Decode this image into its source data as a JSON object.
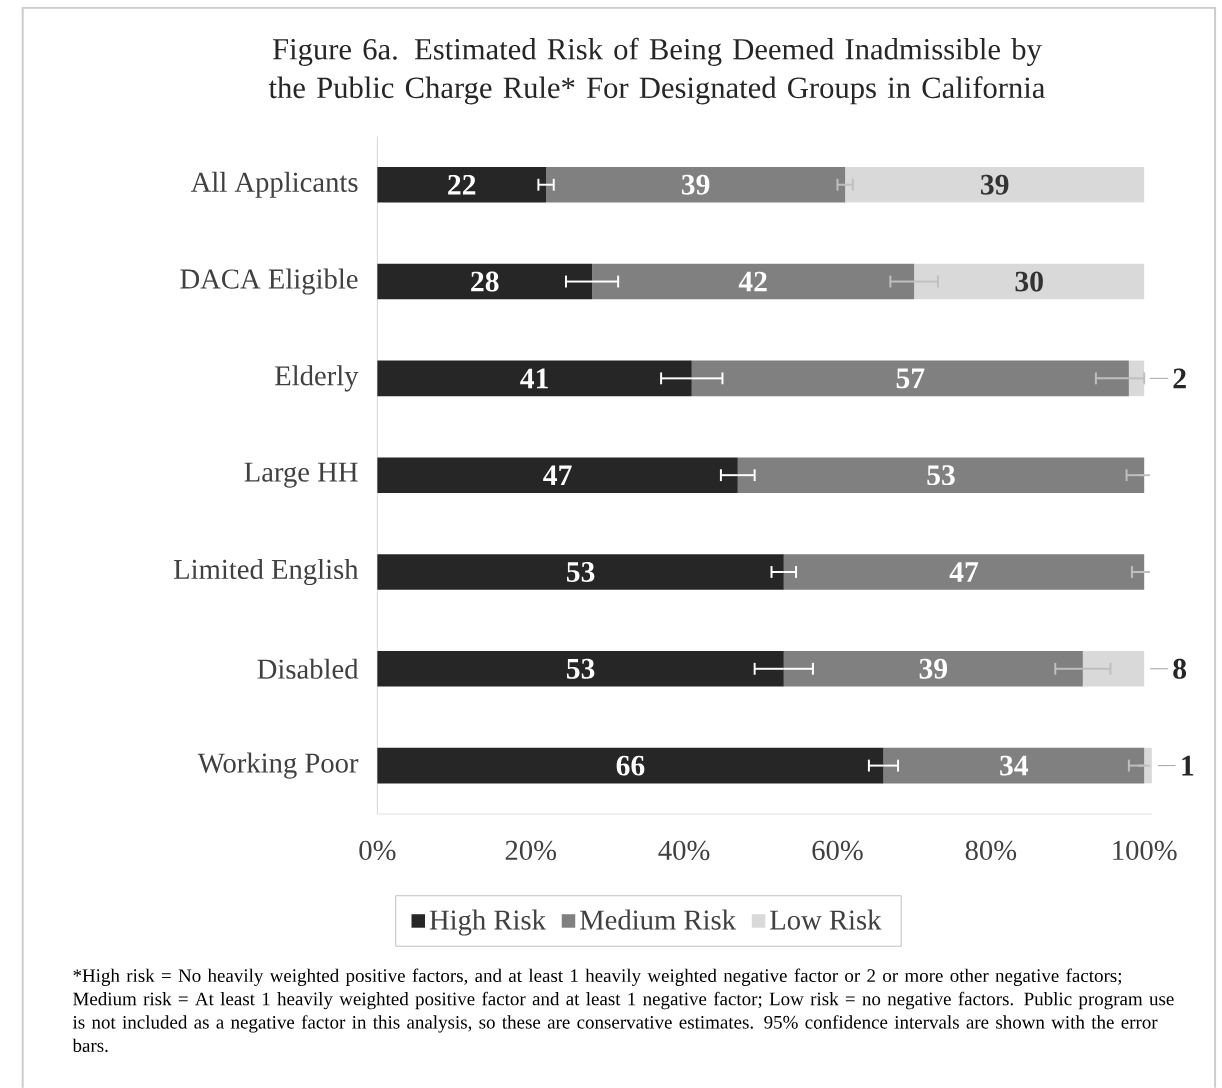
{
  "chart_data": {
    "type": "bar",
    "orientation": "horizontal",
    "stacked": true,
    "title": "Figure 6a.  Estimated Risk of Being Deemed Inadmissible by the Public Charge Rule* For Designated Groups in California",
    "categories": [
      "All Applicants",
      "DACA Eligible",
      "Elderly",
      "Large HH",
      "Limited English",
      "Disabled",
      "Working Poor"
    ],
    "series": [
      {
        "name": "High Risk",
        "color": "#262626",
        "values": [
          22,
          28,
          41,
          47,
          53,
          53,
          66
        ],
        "value_labels": [
          "22",
          "28",
          "41",
          "47",
          "53",
          "53",
          "66"
        ],
        "errors": [
          1,
          3.4,
          4,
          2.2,
          1.6,
          3.8,
          1.9
        ]
      },
      {
        "name": "Medium Risk",
        "color": "#808080",
        "values": [
          39,
          42,
          57,
          53,
          47,
          39,
          34
        ],
        "value_labels": [
          "39",
          "42",
          "57",
          "53",
          "47",
          "39",
          "34"
        ],
        "errors": [
          1,
          3.1,
          [
            93.7,
            100
          ],
          [
            97.7,
            100
          ],
          [
            98.4,
            100
          ],
          3.6,
          [
            98,
            100
          ]
        ]
      },
      {
        "name": "Low Risk",
        "color": "#d9d9d9",
        "values": [
          39,
          30,
          2,
          0,
          0,
          8,
          1
        ],
        "value_labels": [
          "39",
          "30",
          "2",
          null,
          null,
          "8",
          "1"
        ]
      }
    ],
    "xlim": [
      0,
      101
    ],
    "xticks": [
      {
        "value": 0,
        "label": "0%"
      },
      {
        "value": 20,
        "label": "20%"
      },
      {
        "value": 40,
        "label": "40%"
      },
      {
        "value": 60,
        "label": "60%"
      },
      {
        "value": 80,
        "label": "80%"
      },
      {
        "value": 100,
        "label": "100%"
      }
    ],
    "legend": "bottom",
    "grid": false,
    "annotations": [
      "*High risk = No heavily weighted positive factors, and at least 1 heavily weighted negative factor or 2 or more other negative factors; Medium risk = At least 1 heavily weighted positive factor and at least 1 negative factor; Low risk = no negative factors. Public program use is not included as a negative factor in this analysis, so these are conservative estimates.  95% confidence intervals are shown with the error bars."
    ]
  }
}
